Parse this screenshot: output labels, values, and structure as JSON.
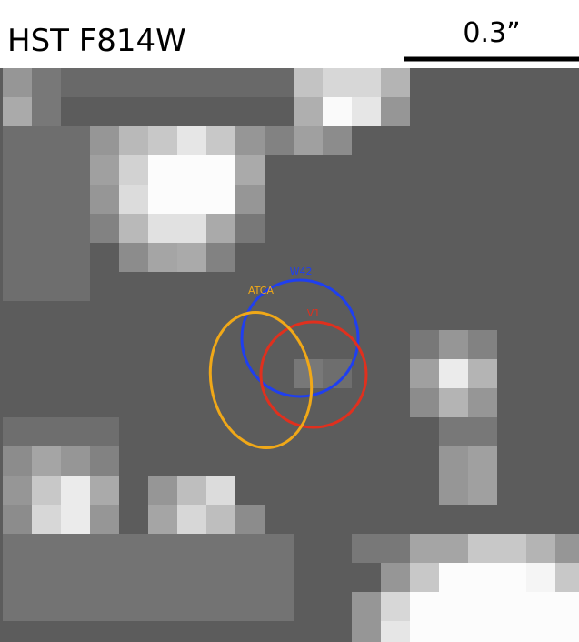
{
  "title": "HST F814W",
  "scale_bar": {
    "label": "0.3”"
  },
  "regions": [
    {
      "label": "W42"
    },
    {
      "label": "ATCA"
    },
    {
      "label": "V1"
    }
  ]
}
